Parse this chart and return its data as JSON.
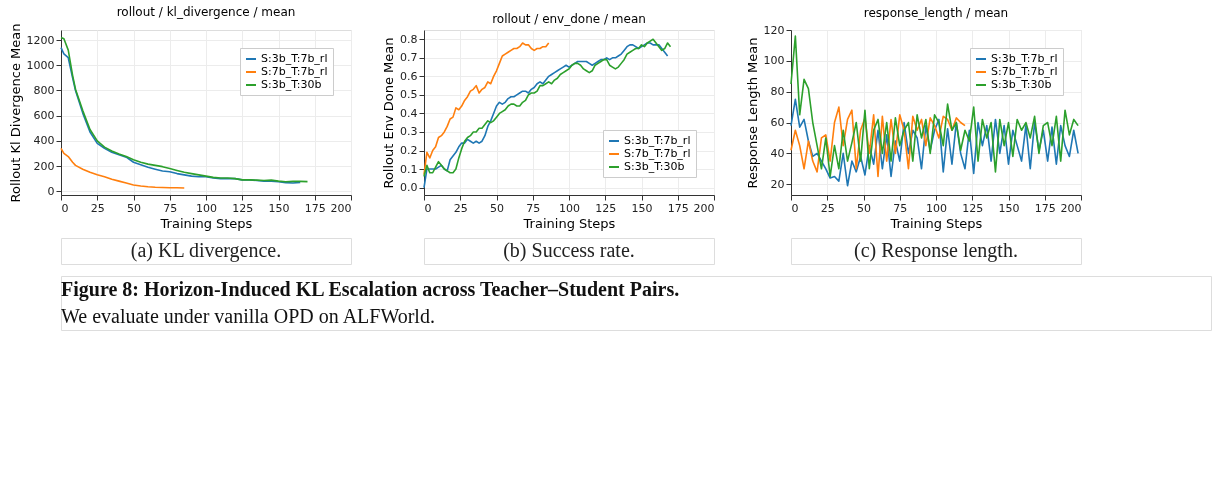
{
  "chart_data": [
    {
      "type": "line",
      "title": "rollout / kl_divergence / mean",
      "xlabel": "Training Steps",
      "ylabel": "Rollout Kl Divergence Mean",
      "xlim": [
        0,
        200
      ],
      "xticks": [
        0,
        25,
        50,
        75,
        100,
        125,
        150,
        175,
        200
      ],
      "ylim": [
        -30,
        1280
      ],
      "yticks": [
        0,
        200,
        400,
        600,
        800,
        1000,
        1200
      ],
      "grid": true,
      "legend": "top right",
      "annotations": [
        "(a) KL divergence."
      ],
      "series": [
        {
          "name": "S:3b_T:7b_rl",
          "color": "#1f77b4",
          "x": [
            0,
            2,
            5,
            8,
            10,
            15,
            20,
            25,
            30,
            35,
            40,
            45,
            50,
            55,
            60,
            65,
            70,
            75,
            80,
            85,
            90,
            95,
            100,
            105,
            110,
            115,
            120,
            125,
            130,
            135,
            140,
            145,
            150,
            155,
            160,
            165
          ],
          "values": [
            1140,
            1090,
            1060,
            900,
            800,
            620,
            470,
            380,
            340,
            310,
            290,
            270,
            230,
            210,
            190,
            175,
            160,
            155,
            140,
            130,
            120,
            115,
            115,
            105,
            100,
            100,
            100,
            90,
            90,
            85,
            80,
            80,
            75,
            68,
            65,
            70
          ]
        },
        {
          "name": "S:7b_T:7b_rl",
          "color": "#ff7f0e",
          "x": [
            0,
            2,
            5,
            8,
            10,
            15,
            20,
            25,
            30,
            35,
            40,
            45,
            50,
            55,
            60,
            65,
            70,
            75,
            80,
            85
          ],
          "values": [
            340,
            300,
            275,
            230,
            205,
            175,
            150,
            130,
            115,
            95,
            80,
            65,
            50,
            42,
            36,
            32,
            30,
            28,
            27,
            25
          ]
        },
        {
          "name": "S:3b_T:30b",
          "color": "#2ca02c",
          "x": [
            0,
            2,
            5,
            8,
            10,
            15,
            20,
            25,
            30,
            35,
            40,
            45,
            50,
            55,
            60,
            65,
            70,
            75,
            80,
            85,
            90,
            95,
            100,
            105,
            110,
            115,
            120,
            125,
            130,
            135,
            140,
            145,
            150,
            155,
            160,
            165,
            170
          ],
          "values": [
            1220,
            1210,
            1120,
            920,
            810,
            640,
            490,
            400,
            350,
            320,
            295,
            275,
            250,
            230,
            215,
            205,
            195,
            180,
            165,
            150,
            140,
            130,
            120,
            110,
            105,
            105,
            100,
            90,
            90,
            88,
            85,
            88,
            80,
            75,
            78,
            78,
            76
          ]
        }
      ]
    },
    {
      "type": "line",
      "title": "rollout / env_done / mean",
      "xlabel": "Training Steps",
      "ylabel": "Rollout Env Done Mean",
      "xlim": [
        0,
        200
      ],
      "xticks": [
        0,
        25,
        50,
        75,
        100,
        125,
        150,
        175,
        200
      ],
      "ylim": [
        -0.04,
        0.85
      ],
      "yticks": [
        {
          "value": 0,
          "label": "0.0"
        },
        0.1,
        0.2,
        0.3,
        0.4,
        0.5,
        0.6,
        0.7,
        0.8
      ],
      "grid": true,
      "legend": "bottom right",
      "annotations": [
        "(b) Success rate."
      ],
      "series": [
        {
          "name": "S:3b_T:7b_rl",
          "color": "#1f77b4",
          "x": [
            0,
            2,
            4,
            6,
            8,
            10,
            12,
            14,
            16,
            18,
            20,
            22,
            24,
            26,
            28,
            30,
            32,
            34,
            36,
            38,
            40,
            42,
            44,
            46,
            48,
            50,
            52,
            54,
            56,
            58,
            60,
            62,
            64,
            66,
            68,
            70,
            72,
            74,
            76,
            78,
            80,
            82,
            84,
            86,
            88,
            90,
            92,
            94,
            96,
            98,
            100,
            102,
            104,
            106,
            108,
            110,
            112,
            114,
            116,
            118,
            120,
            122,
            124,
            126,
            128,
            130,
            132,
            134,
            136,
            138,
            140,
            142,
            144,
            146,
            148,
            150,
            152,
            154,
            156,
            158,
            160,
            162,
            164,
            166,
            168
          ],
          "values": [
            0.0,
            0.1,
            0.1,
            0.1,
            0.1,
            0.11,
            0.12,
            0.1,
            0.09,
            0.15,
            0.17,
            0.19,
            0.22,
            0.24,
            0.24,
            0.26,
            0.25,
            0.24,
            0.25,
            0.24,
            0.25,
            0.28,
            0.33,
            0.36,
            0.4,
            0.44,
            0.46,
            0.45,
            0.46,
            0.48,
            0.49,
            0.49,
            0.5,
            0.51,
            0.52,
            0.52,
            0.51,
            0.53,
            0.54,
            0.56,
            0.57,
            0.56,
            0.58,
            0.6,
            0.61,
            0.62,
            0.63,
            0.64,
            0.65,
            0.66,
            0.65,
            0.66,
            0.67,
            0.68,
            0.68,
            0.68,
            0.68,
            0.67,
            0.66,
            0.67,
            0.68,
            0.69,
            0.69,
            0.7,
            0.69,
            0.7,
            0.7,
            0.71,
            0.72,
            0.74,
            0.76,
            0.77,
            0.77,
            0.76,
            0.75,
            0.76,
            0.77,
            0.78,
            0.78,
            0.77,
            0.77,
            0.77,
            0.75,
            0.73,
            0.71
          ]
        },
        {
          "name": "S:7b_T:7b_rl",
          "color": "#ff7f0e",
          "x": [
            0,
            2,
            4,
            6,
            8,
            10,
            12,
            14,
            16,
            18,
            20,
            22,
            24,
            26,
            28,
            30,
            32,
            34,
            36,
            38,
            40,
            42,
            44,
            46,
            48,
            50,
            52,
            54,
            56,
            58,
            60,
            62,
            64,
            66,
            68,
            70,
            72,
            74,
            76,
            78,
            80,
            82,
            84,
            86
          ],
          "values": [
            0.07,
            0.19,
            0.16,
            0.2,
            0.22,
            0.27,
            0.28,
            0.3,
            0.33,
            0.37,
            0.38,
            0.43,
            0.42,
            0.44,
            0.47,
            0.49,
            0.52,
            0.53,
            0.55,
            0.51,
            0.53,
            0.54,
            0.57,
            0.56,
            0.6,
            0.63,
            0.67,
            0.71,
            0.72,
            0.73,
            0.74,
            0.75,
            0.75,
            0.76,
            0.78,
            0.77,
            0.77,
            0.75,
            0.74,
            0.75,
            0.75,
            0.76,
            0.76,
            0.78
          ]
        },
        {
          "name": "S:3b_T:30b",
          "color": "#2ca02c",
          "x": [
            0,
            2,
            4,
            6,
            8,
            10,
            12,
            14,
            16,
            18,
            20,
            22,
            24,
            26,
            28,
            30,
            32,
            34,
            36,
            38,
            40,
            42,
            44,
            46,
            48,
            50,
            52,
            54,
            56,
            58,
            60,
            62,
            64,
            66,
            68,
            70,
            72,
            74,
            76,
            78,
            80,
            82,
            84,
            86,
            88,
            90,
            92,
            94,
            96,
            98,
            100,
            102,
            104,
            106,
            108,
            110,
            112,
            114,
            116,
            118,
            120,
            122,
            124,
            126,
            128,
            130,
            132,
            134,
            136,
            138,
            140,
            142,
            144,
            146,
            148,
            150,
            152,
            154,
            156,
            158,
            160,
            162,
            164,
            166,
            168,
            170
          ],
          "values": [
            0.06,
            0.12,
            0.08,
            0.08,
            0.11,
            0.14,
            0.12,
            0.1,
            0.09,
            0.08,
            0.08,
            0.1,
            0.16,
            0.21,
            0.25,
            0.27,
            0.28,
            0.3,
            0.3,
            0.32,
            0.32,
            0.34,
            0.36,
            0.35,
            0.36,
            0.38,
            0.4,
            0.41,
            0.42,
            0.44,
            0.45,
            0.45,
            0.44,
            0.44,
            0.46,
            0.47,
            0.5,
            0.51,
            0.51,
            0.52,
            0.55,
            0.55,
            0.56,
            0.57,
            0.56,
            0.58,
            0.59,
            0.61,
            0.62,
            0.63,
            0.64,
            0.66,
            0.67,
            0.67,
            0.66,
            0.64,
            0.63,
            0.62,
            0.63,
            0.66,
            0.67,
            0.68,
            0.69,
            0.69,
            0.66,
            0.65,
            0.64,
            0.65,
            0.67,
            0.69,
            0.72,
            0.73,
            0.74,
            0.75,
            0.75,
            0.77,
            0.76,
            0.78,
            0.79,
            0.8,
            0.78,
            0.76,
            0.74,
            0.75,
            0.78,
            0.76
          ]
        }
      ]
    },
    {
      "type": "line",
      "title": "response_length / mean",
      "xlabel": "Training Steps",
      "ylabel": "Response Length Mean",
      "xlim": [
        0,
        200
      ],
      "xticks": [
        0,
        25,
        50,
        75,
        100,
        125,
        150,
        175,
        200
      ],
      "ylim": [
        13,
        120
      ],
      "yticks": [
        20,
        40,
        60,
        80,
        100,
        120
      ],
      "grid": true,
      "legend": "top right",
      "annotations": [
        "(c) Response length."
      ],
      "series": [
        {
          "name": "S:3b_T:7b_rl",
          "color": "#1f77b4",
          "x": [
            0,
            3,
            6,
            9,
            12,
            15,
            18,
            21,
            24,
            27,
            30,
            33,
            36,
            39,
            42,
            45,
            48,
            51,
            54,
            57,
            60,
            63,
            66,
            69,
            72,
            75,
            78,
            81,
            84,
            87,
            90,
            93,
            96,
            99,
            102,
            105,
            108,
            111,
            114,
            117,
            120,
            123,
            126,
            129,
            132,
            135,
            138,
            141,
            144,
            147,
            150,
            153,
            156,
            159,
            162,
            165,
            168,
            171,
            174,
            177,
            180,
            183,
            186,
            189,
            192,
            195,
            198
          ],
          "values": [
            58,
            75,
            57,
            62,
            48,
            38,
            40,
            35,
            30,
            24,
            25,
            22,
            40,
            19,
            35,
            28,
            38,
            26,
            45,
            33,
            55,
            30,
            52,
            25,
            48,
            35,
            60,
            40,
            55,
            50,
            30,
            58,
            42,
            55,
            62,
            28,
            56,
            33,
            60,
            40,
            30,
            55,
            27,
            60,
            45,
            58,
            35,
            62,
            40,
            58,
            33,
            55,
            45,
            35,
            58,
            30,
            60,
            42,
            55,
            35,
            57,
            33,
            58,
            45,
            38,
            55,
            40
          ]
        },
        {
          "name": "S:7b_T:7b_rl",
          "color": "#ff7f0e",
          "x": [
            0,
            3,
            6,
            9,
            12,
            15,
            18,
            21,
            24,
            27,
            30,
            33,
            36,
            39,
            42,
            45,
            48,
            51,
            54,
            57,
            60,
            63,
            66,
            69,
            72,
            75,
            78,
            81,
            84,
            87,
            90,
            93,
            96,
            99,
            102,
            105,
            108,
            111,
            114,
            117,
            120
          ],
          "values": [
            42,
            55,
            45,
            30,
            48,
            35,
            28,
            50,
            52,
            35,
            60,
            70,
            45,
            62,
            68,
            30,
            55,
            63,
            40,
            65,
            25,
            64,
            35,
            62,
            40,
            65,
            55,
            30,
            64,
            55,
            62,
            45,
            63,
            58,
            50,
            64,
            62,
            55,
            63,
            60,
            58
          ]
        },
        {
          "name": "S:3b_T:30b",
          "color": "#2ca02c",
          "x": [
            0,
            3,
            6,
            9,
            12,
            15,
            18,
            21,
            24,
            27,
            30,
            33,
            36,
            39,
            42,
            45,
            48,
            51,
            54,
            57,
            60,
            63,
            66,
            69,
            72,
            75,
            78,
            81,
            84,
            87,
            90,
            93,
            96,
            99,
            102,
            105,
            108,
            111,
            114,
            117,
            120,
            123,
            126,
            129,
            132,
            135,
            138,
            141,
            144,
            147,
            150,
            153,
            156,
            159,
            162,
            165,
            168,
            171,
            174,
            177,
            180,
            183,
            186,
            189,
            192,
            195,
            198
          ],
          "values": [
            85,
            116,
            65,
            88,
            82,
            60,
            45,
            30,
            50,
            25,
            45,
            30,
            55,
            35,
            47,
            60,
            35,
            68,
            30,
            55,
            62,
            40,
            60,
            35,
            63,
            45,
            55,
            60,
            35,
            65,
            50,
            62,
            40,
            65,
            60,
            45,
            72,
            55,
            60,
            42,
            55,
            48,
            70,
            35,
            62,
            50,
            60,
            28,
            62,
            45,
            60,
            38,
            62,
            55,
            60,
            50,
            64,
            40,
            58,
            60,
            45,
            64,
            35,
            68,
            52,
            62,
            58
          ]
        }
      ]
    },
    {
      "type": "other",
      "title": "Figure 8: Horizon-Induced KL Escalation across Teacher–Student Pairs.",
      "annotations": [
        "We evaluate under vanilla OPD on ALFWorld."
      ]
    }
  ]
}
